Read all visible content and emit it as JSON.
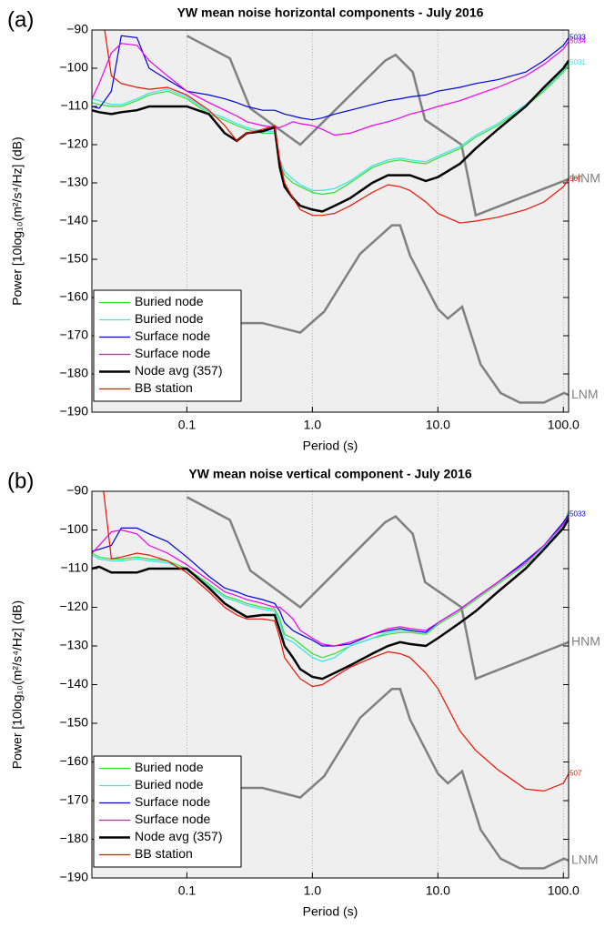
{
  "chart_data": [
    {
      "type": "line",
      "panel_label": "(a)",
      "title": "YW mean noise horizontal components - July 2016",
      "xlabel": "Period (s)",
      "ylabel": "Power [10log₁₀(m²/s⁴/Hz] (dB)",
      "xscale": "log",
      "xlim": [
        0.0175,
        110
      ],
      "ylim": [
        -190,
        -90
      ],
      "xticks": [
        0.1,
        {
          "value": 1,
          "label": "1.0"
        },
        {
          "value": 10,
          "label": "10.0"
        },
        {
          "value": 100,
          "label": "100.0"
        }
      ],
      "yticks": [
        {
          "value": -190,
          "label": "−190"
        },
        {
          "value": -180,
          "label": "−180"
        },
        {
          "value": -170,
          "label": "−170"
        },
        {
          "value": -160,
          "label": "−160"
        },
        {
          "value": -150,
          "label": "−150"
        },
        {
          "value": -140,
          "label": "−140"
        },
        {
          "value": -130,
          "label": "−130"
        },
        {
          "value": -120,
          "label": "−120"
        },
        {
          "value": -110,
          "label": "−110"
        },
        {
          "value": -100,
          "label": "−100"
        },
        {
          "value": -90,
          "label": "−90"
        }
      ],
      "grid": true,
      "legend": "lower left",
      "x": [
        0.0175,
        0.02,
        0.025,
        0.03,
        0.04,
        0.05,
        0.07,
        0.1,
        0.15,
        0.2,
        0.25,
        0.3,
        0.4,
        0.5,
        0.55,
        0.6,
        0.7,
        0.8,
        1,
        1.2,
        1.5,
        2,
        3,
        4,
        5,
        6,
        8,
        10,
        15,
        20,
        30,
        50,
        70,
        100,
        110
      ],
      "series": [
        {
          "name": "Buried node",
          "color": "#33dd33",
          "linewidth": 1.2,
          "values": [
            -109,
            -109.5,
            -110,
            -110,
            -108.5,
            -107,
            -106,
            -108,
            -112,
            -113.6,
            -115,
            -116,
            -117,
            -117,
            -125,
            -128,
            -130,
            -131,
            -132.5,
            -133,
            -132.5,
            -130,
            -126,
            -124.5,
            -124,
            -124.5,
            -125,
            -123.5,
            -121,
            -118,
            -115,
            -110,
            -106,
            -101,
            -99
          ]
        },
        {
          "name": "Buried node",
          "color": "#33e6e6",
          "linewidth": 1.2,
          "end_label": "5031",
          "values": [
            -108,
            -108.5,
            -109.5,
            -109.5,
            -108,
            -106.5,
            -105.5,
            -107.5,
            -111.5,
            -113,
            -114.5,
            -115.5,
            -116.5,
            -116.5,
            -124,
            -127,
            -129,
            -130.5,
            -132,
            -132,
            -131.5,
            -129.5,
            -125.5,
            -124,
            -123.5,
            -124,
            -124.5,
            -123,
            -120.5,
            -117.5,
            -114.5,
            -109.5,
            -105.5,
            -100.5,
            -98.5
          ]
        },
        {
          "name": "Surface node",
          "color": "#0000dd",
          "linewidth": 1.2,
          "end_label": "5033",
          "values": [
            -110,
            -110.5,
            -106,
            -91.5,
            -92,
            -100,
            -103,
            -106,
            -107,
            -108,
            -109,
            -110,
            -111,
            -111,
            -111.5,
            -112,
            -112.5,
            -113,
            -113.5,
            -113,
            -112,
            -111,
            -109.5,
            -108.5,
            -108,
            -107.5,
            -107,
            -106,
            -105,
            -104,
            -103,
            -101,
            -98,
            -94,
            -92
          ]
        },
        {
          "name": "Surface node",
          "color": "#ee00ee",
          "linewidth": 1.2,
          "end_label": "5034",
          "values": [
            -108,
            -104,
            -96,
            -93.5,
            -94,
            -98,
            -102,
            -106,
            -109,
            -111,
            -112.5,
            -114,
            -115,
            -115.5,
            -115.5,
            -115,
            -114,
            -114.5,
            -115,
            -116,
            -117.5,
            -117,
            -115,
            -114,
            -113,
            -112,
            -111,
            -110,
            -108.5,
            -107,
            -105,
            -102,
            -99,
            -95,
            -93
          ]
        },
        {
          "name": "Node avg (357)",
          "color": "#000000",
          "linewidth": 2.5,
          "values": [
            -111,
            -111.5,
            -112,
            -111.5,
            -111,
            -110,
            -110,
            -110,
            -112,
            -117,
            -119,
            -117,
            -116.5,
            -115.5,
            -126,
            -131,
            -134,
            -136,
            -137,
            -137.5,
            -136,
            -134,
            -130,
            -128,
            -128,
            -128,
            -129.5,
            -128.5,
            -125,
            -121,
            -116,
            -110,
            -105,
            -100,
            -98
          ]
        },
        {
          "name": "BB station",
          "color": "#ee1100",
          "linewidth": 1.2,
          "end_label": "507",
          "values": [
            null,
            -80,
            -102,
            -104,
            -105,
            -105.5,
            -105,
            -107,
            -111,
            -115,
            -119,
            -117,
            -116,
            -115,
            -124,
            -130,
            -134,
            -137,
            -138.5,
            -138.5,
            -138,
            -136,
            -132.5,
            -130.5,
            -131,
            -132,
            -135,
            -138,
            -140.5,
            -140,
            -139,
            -137,
            -135,
            -131,
            -129
          ]
        }
      ],
      "reference_models": [
        {
          "name": "HNM",
          "color": "#808080",
          "x": [
            0.1,
            0.22,
            0.32,
            0.8,
            3.8,
            4.6,
            6.3,
            7.9,
            15.4,
            20,
            110
          ],
          "values": [
            -91.5,
            -97.4,
            -110.5,
            -120,
            -98,
            -96.5,
            -101,
            -113.5,
            -120,
            -138.5,
            -129
          ]
        },
        {
          "name": "LNM",
          "color": "#808080",
          "x": [
            0.1,
            0.17,
            0.4,
            0.8,
            1.24,
            2.4,
            4.3,
            5,
            6,
            10,
            12,
            15.6,
            21.9,
            31.6,
            45,
            70,
            101,
            110
          ],
          "values": [
            -166.7,
            -166.7,
            -166.7,
            -169.2,
            -163.7,
            -148.6,
            -141.1,
            -141.1,
            -149,
            -163,
            -165.5,
            -162.4,
            -177.5,
            -185,
            -187.5,
            -187.5,
            -185,
            -185.5
          ]
        }
      ]
    },
    {
      "type": "line",
      "panel_label": "(b)",
      "title": "YW mean noise vertical component - July 2016",
      "xlabel": "Period (s)",
      "ylabel": "Power [10log₁₀(m²/s⁴/Hz] (dB)",
      "xscale": "log",
      "xlim": [
        0.0175,
        110
      ],
      "ylim": [
        -190,
        -90
      ],
      "xticks": [
        0.1,
        {
          "value": 1,
          "label": "1.0"
        },
        {
          "value": 10,
          "label": "10.0"
        },
        {
          "value": 100,
          "label": "100.0"
        }
      ],
      "yticks": [
        {
          "value": -190,
          "label": "−190"
        },
        {
          "value": -180,
          "label": "−180"
        },
        {
          "value": -170,
          "label": "−170"
        },
        {
          "value": -160,
          "label": "−160"
        },
        {
          "value": -150,
          "label": "−150"
        },
        {
          "value": -140,
          "label": "−140"
        },
        {
          "value": -130,
          "label": "−130"
        },
        {
          "value": -120,
          "label": "−120"
        },
        {
          "value": -110,
          "label": "−110"
        },
        {
          "value": -100,
          "label": "−100"
        },
        {
          "value": -90,
          "label": "−90"
        }
      ],
      "grid": true,
      "legend": "lower left",
      "x": [
        0.0175,
        0.02,
        0.025,
        0.03,
        0.04,
        0.05,
        0.07,
        0.1,
        0.15,
        0.2,
        0.25,
        0.3,
        0.4,
        0.5,
        0.55,
        0.6,
        0.7,
        0.8,
        1,
        1.2,
        1.5,
        2,
        3,
        4,
        5,
        6,
        8,
        10,
        15,
        20,
        30,
        50,
        70,
        100,
        110
      ],
      "series": [
        {
          "name": "Buried node",
          "color": "#33dd33",
          "linewidth": 1.2,
          "values": [
            -106,
            -107,
            -107.5,
            -107.5,
            -107,
            -107.5,
            -108,
            -110,
            -114,
            -117,
            -118,
            -119,
            -120,
            -120.5,
            -123,
            -127,
            -128,
            -129.5,
            -132,
            -133,
            -132,
            -130,
            -128,
            -127,
            -126.5,
            -126.5,
            -127,
            -124.5,
            -121,
            -118,
            -114,
            -109,
            -105,
            -99,
            -95
          ]
        },
        {
          "name": "Buried node",
          "color": "#33e6e6",
          "linewidth": 1.2,
          "values": [
            -106.5,
            -107.5,
            -108,
            -108,
            -107.5,
            -108,
            -108.5,
            -110.5,
            -114.5,
            -117.5,
            -118.5,
            -119.5,
            -120.5,
            -121,
            -124,
            -128,
            -129,
            -130.5,
            -133,
            -134,
            -133,
            -130,
            -128,
            -126.5,
            -126,
            -126,
            -126.5,
            -124,
            -120.5,
            -117.5,
            -113.5,
            -108.5,
            -104.5,
            -98.5,
            -96
          ]
        },
        {
          "name": "Surface node",
          "color": "#0000dd",
          "linewidth": 1.2,
          "end_label": "5033",
          "values": [
            -105.5,
            -105,
            -104,
            -99.5,
            -99.5,
            -101,
            -103,
            -107,
            -112,
            -115,
            -116,
            -117,
            -118,
            -119,
            -121,
            -124,
            -126,
            -127,
            -128.5,
            -130,
            -130,
            -129.5,
            -127,
            -126,
            -125.5,
            -126,
            -126.5,
            -124,
            -120.5,
            -117.5,
            -113.5,
            -108,
            -104,
            -98,
            -96
          ]
        },
        {
          "name": "Surface node",
          "color": "#ee00ee",
          "linewidth": 1.2,
          "values": [
            -106,
            -104,
            -100.5,
            -100,
            -101,
            -104,
            -106,
            -109,
            -113,
            -116,
            -117,
            -118,
            -119,
            -120,
            -120,
            -121,
            -123,
            -126,
            -128,
            -129.5,
            -130,
            -129,
            -127,
            -125.5,
            -125,
            -125.5,
            -126,
            -124,
            -120.5,
            -117.5,
            -113.5,
            -108.5,
            -104,
            -98.5,
            -96.5
          ]
        },
        {
          "name": "Node avg (357)",
          "color": "#000000",
          "linewidth": 2.5,
          "values": [
            -110,
            -109.5,
            -111,
            -111,
            -111,
            -110,
            -110,
            -110,
            -115,
            -119,
            -121,
            -122.5,
            -122,
            -122,
            -126,
            -130,
            -133,
            -136,
            -138,
            -138.5,
            -137,
            -135,
            -132,
            -130,
            -129,
            -129.5,
            -130,
            -128,
            -124,
            -121,
            -116,
            -110,
            -105,
            -99.5,
            -97
          ]
        },
        {
          "name": "BB station",
          "color": "#ee1100",
          "linewidth": 1.2,
          "end_label": "507",
          "values": [
            null,
            -80,
            -107.5,
            -107,
            -106,
            -106.5,
            -108,
            -111,
            -116,
            -120,
            -122,
            -123,
            -123,
            -123.5,
            -128,
            -133,
            -136,
            -138.5,
            -140.5,
            -140,
            -138,
            -135.5,
            -133,
            -131.5,
            -132,
            -133,
            -137,
            -141,
            -152,
            -157,
            -162,
            -167,
            -167.5,
            -165.5,
            -163
          ]
        }
      ],
      "reference_models": [
        {
          "name": "HNM",
          "color": "#808080",
          "x": [
            0.1,
            0.22,
            0.32,
            0.8,
            3.8,
            4.6,
            6.3,
            7.9,
            15.4,
            20,
            110
          ],
          "values": [
            -91.5,
            -97.4,
            -110.5,
            -120,
            -98,
            -96.5,
            -101,
            -113.5,
            -120,
            -138.5,
            -129
          ]
        },
        {
          "name": "LNM",
          "color": "#808080",
          "x": [
            0.1,
            0.17,
            0.4,
            0.8,
            1.24,
            2.4,
            4.3,
            5,
            6,
            10,
            12,
            15.6,
            21.9,
            31.6,
            45,
            70,
            101,
            110
          ],
          "values": [
            -166.7,
            -166.7,
            -166.7,
            -169.2,
            -163.7,
            -148.6,
            -141.1,
            -141.1,
            -149,
            -163,
            -165.5,
            -162.4,
            -177.5,
            -185,
            -187.5,
            -187.5,
            -185,
            -185.5
          ]
        }
      ]
    }
  ]
}
